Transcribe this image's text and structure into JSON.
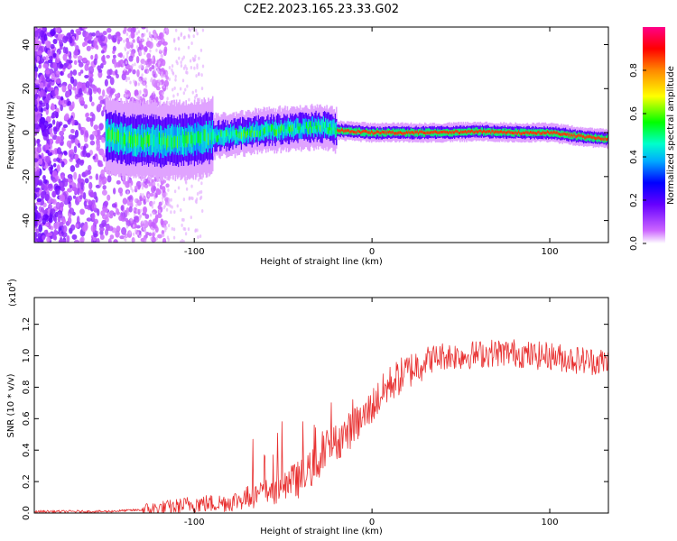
{
  "title": "C2E2.2023.165.23.33.G02",
  "colors": {
    "snr_line": "#e83030",
    "axis": "#000000",
    "background": "#ffffff"
  },
  "chart_data": [
    {
      "type": "heatmap",
      "title": "C2E2.2023.165.23.33.G02",
      "xlabel": "Height of straight line (km)",
      "ylabel": "Frequency (Hz)",
      "xlim": [
        -190,
        133
      ],
      "ylim": [
        -50,
        48
      ],
      "xticks": [
        -100,
        0,
        100
      ],
      "yticks": [
        -40,
        -20,
        0,
        20,
        40
      ],
      "grid": false,
      "colorbar": {
        "label": "Normalized spectral amplitude",
        "range": [
          0,
          1
        ],
        "ticks": [
          0.0,
          0.2,
          0.4,
          0.6,
          0.8
        ],
        "colormap": [
          "#ffffff",
          "#cc66ff",
          "#6600ff",
          "#0000ff",
          "#00aaff",
          "#00ffcc",
          "#00ff00",
          "#ffff00",
          "#ff8800",
          "#ff0000",
          "#ff0088"
        ]
      },
      "signal_track": {
        "x": [
          -190,
          -150,
          -140,
          -120,
          -100,
          -80,
          -60,
          -40,
          -30,
          -20,
          0,
          20,
          40,
          60,
          80,
          100,
          110,
          120,
          133
        ],
        "y": [
          0,
          -1,
          -3,
          -4,
          -3,
          -1,
          1,
          2,
          3,
          1,
          0,
          0,
          0,
          0.5,
          0,
          0,
          -1,
          -2,
          -3
        ]
      }
    },
    {
      "type": "line",
      "xlabel": "Height of straight line (km)",
      "ylabel": "SNR (10 * v/v)",
      "y_scale_label": "(x10",
      "y_scale_exponent": "4",
      "xlim": [
        -190,
        133
      ],
      "ylim": [
        0,
        1.37
      ],
      "xticks": [
        -100,
        0,
        100
      ],
      "yticks": [
        0.0,
        0.2,
        0.4,
        0.6,
        0.8,
        1.0,
        1.2
      ],
      "grid": false,
      "series": [
        {
          "x": [
            -190,
            -150,
            -130,
            -120,
            -110,
            -100,
            -90,
            -80,
            -70,
            -60,
            -50,
            -40,
            -35,
            -30,
            -25,
            -20,
            -15,
            -10,
            -5,
            0,
            10,
            20,
            30,
            40,
            50,
            60,
            70,
            80,
            90,
            100,
            110,
            120,
            133
          ],
          "y": [
            0.01,
            0.01,
            0.02,
            0.03,
            0.04,
            0.06,
            0.06,
            0.07,
            0.1,
            0.13,
            0.17,
            0.22,
            0.27,
            0.33,
            0.42,
            0.45,
            0.5,
            0.55,
            0.6,
            0.68,
            0.82,
            0.9,
            0.97,
            1.0,
            1.0,
            1.01,
            1.02,
            1.02,
            1.0,
            1.0,
            0.98,
            0.97,
            0.96
          ]
        }
      ]
    }
  ]
}
